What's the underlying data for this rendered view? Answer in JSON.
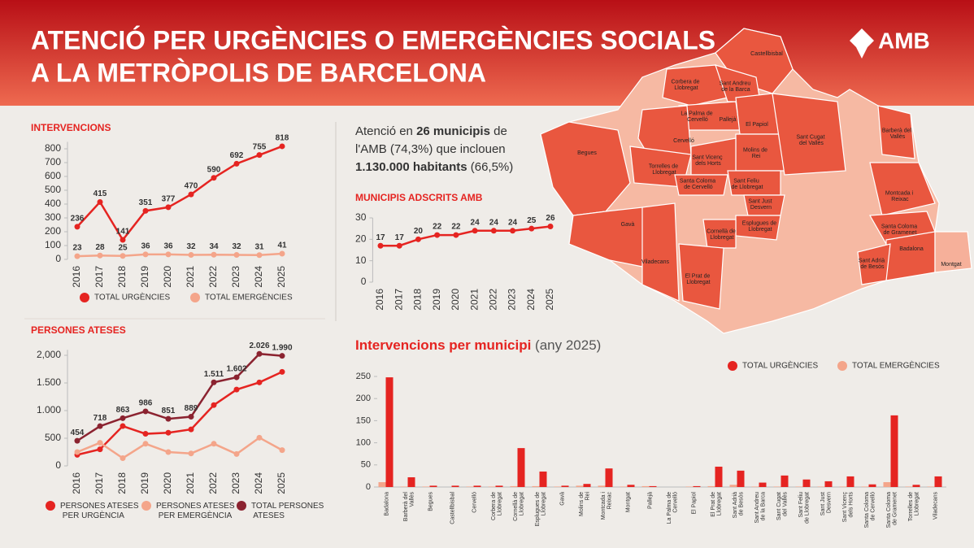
{
  "header": {
    "title_line1": "ATENCIÓ PER URGÈNCIES O EMERGÈNCIES SOCIALS",
    "title_line2": "A LA METRÒPOLIS DE BARCELONA",
    "logo": "AMB"
  },
  "summary": {
    "lines": [
      [
        "Atenció en ",
        "26 municipis",
        " de"
      ],
      [
        "l'AMB (74,3%) que inclouen"
      ],
      [
        "1.130.000 habitants",
        " (66,5%)"
      ]
    ]
  },
  "map": {
    "labels": [
      "Castellbisbal",
      "Corbera de Llobregat",
      "Sant Andreu de la Barca",
      "La Palma de Cervelló",
      "Pallejà",
      "El Papiol",
      "Cervelló",
      "Begues",
      "Sant Vicenç dels Horts",
      "Torrelles de Llobregat",
      "Molins de Rei",
      "Sant Cugat del Vallès",
      "Barberà del Vallès",
      "Santa Coloma de Cervelló",
      "Sant Feliu de Llobregat",
      "Sant Just Desvern",
      "Esplugues de Llobregat",
      "Cornellà de Llobregat",
      "Gavà",
      "Viladecans",
      "El Prat de Llobregat",
      "Montcada i Reixac",
      "Santa Coloma de Gramenet",
      "Badalona",
      "Sant Adrià de Besòs",
      "Montgat"
    ]
  },
  "chart_data": [
    {
      "type": "line",
      "title": "INTERVENCIONS",
      "categories": [
        "2016",
        "2017",
        "2018",
        "2019",
        "2020",
        "2021",
        "2022",
        "2023",
        "2024",
        "2025"
      ],
      "series": [
        {
          "name": "TOTAL URGÈNCIES",
          "color": "#e52421",
          "show_labels": true,
          "values": [
            236,
            415,
            141,
            351,
            377,
            470,
            590,
            692,
            755,
            818
          ]
        },
        {
          "name": "TOTAL EMERGÈNCIES",
          "color": "#f4a58a",
          "show_labels": true,
          "values": [
            23,
            28,
            25,
            36,
            36,
            32,
            34,
            32,
            31,
            41
          ]
        }
      ],
      "ylim": [
        0,
        850
      ],
      "yticks": [
        0,
        100,
        200,
        300,
        400,
        500,
        600,
        700,
        800
      ],
      "grid": false
    },
    {
      "type": "line",
      "title": "PERSONES ATESES",
      "categories": [
        "2016",
        "2017",
        "2018",
        "2019",
        "2020",
        "2021",
        "2022",
        "2023",
        "2024",
        "2025"
      ],
      "series": [
        {
          "name": "PERSONES ATESES PER URGÈNCIA",
          "color": "#e52421",
          "values": [
            200,
            300,
            720,
            580,
            600,
            660,
            1100,
            1380,
            1510,
            1700
          ]
        },
        {
          "name": "PERSONES ATESES PER EMERGÈNCIA",
          "color": "#f4a58a",
          "values": [
            250,
            418,
            140,
            400,
            250,
            225,
            400,
            215,
            510,
            285
          ]
        },
        {
          "name": "TOTAL PERSONES ATESES",
          "color": "#8b2330",
          "show_labels": true,
          "values": [
            454,
            718,
            863,
            986,
            851,
            889,
            1511,
            1602,
            2026,
            1990
          ],
          "value_labels": [
            "454",
            "718",
            "863",
            "986",
            "851",
            "889",
            "1.511",
            "1.602",
            "2.026",
            "1.990"
          ]
        }
      ],
      "ylim": [
        0,
        2100
      ],
      "yticks": [
        0,
        500,
        {
          "value": 1000,
          "label": "1.000"
        },
        {
          "value": 1500,
          "label": "1.500"
        },
        {
          "value": 2000,
          "label": "2,000"
        }
      ],
      "grid": false
    },
    {
      "type": "line",
      "title": "MUNICIPIS ADSCRITS AMB",
      "categories": [
        "2016",
        "2017",
        "2018",
        "2019",
        "2020",
        "2021",
        "2022",
        "2023",
        "2024",
        "2025"
      ],
      "series": [
        {
          "color": "#e52421",
          "show_labels": true,
          "values": [
            17,
            17,
            20,
            22,
            22,
            24,
            24,
            24,
            25,
            26
          ]
        }
      ],
      "ylim": [
        0,
        30
      ],
      "yticks": [
        0,
        10,
        20,
        30
      ],
      "grid": false
    },
    {
      "type": "bar",
      "title": "Intervencions per municipi",
      "subtitle": " (any 2025)",
      "categories": [
        "Badalona",
        "Barberà del Vallès",
        "Begues",
        "Castellbisbal",
        "Cervelló",
        "Corbera de Llobregat",
        "Cornellà de Llobregat",
        "Esplugues de Llobregat",
        "Gavà",
        "Molins de Rei",
        "Montcada i Reixac",
        "Montgat",
        "Pallejà",
        "La Palma de Cervelló",
        "El Papiol",
        "El Prat de Llobregat",
        "Sant Adrià de Besòs",
        "Sant Andreu de la Barca",
        "Sant Cugat del Vallès",
        "Sant Feliu de Llobregat",
        "Sant Just Desvern",
        "Sant Vicenç dels Horts",
        "Santa Coloma de Cervelló",
        "Santa Coloma de Gramenet",
        "Torrelles de Llobregat",
        "Viladecans"
      ],
      "series": [
        {
          "name": "TOTAL URGÈNCIES",
          "color": "#e52421",
          "values": [
            248,
            22,
            3,
            3,
            3,
            3,
            88,
            35,
            3,
            7,
            42,
            5,
            2,
            0,
            2,
            46,
            37,
            10,
            26,
            17,
            13,
            24,
            6,
            162,
            5,
            24
          ]
        },
        {
          "name": "TOTAL EMERGÈNCIES",
          "color": "#f4a58a",
          "values": [
            11,
            1,
            1,
            0,
            1,
            1,
            2,
            2,
            1,
            3,
            3,
            1,
            2,
            0,
            1,
            2,
            5,
            1,
            1,
            1,
            1,
            1,
            1,
            11,
            1,
            1
          ]
        }
      ],
      "ylim": [
        0,
        250
      ],
      "yticks": [
        0,
        50,
        100,
        150,
        200,
        250
      ],
      "grid": false
    }
  ]
}
